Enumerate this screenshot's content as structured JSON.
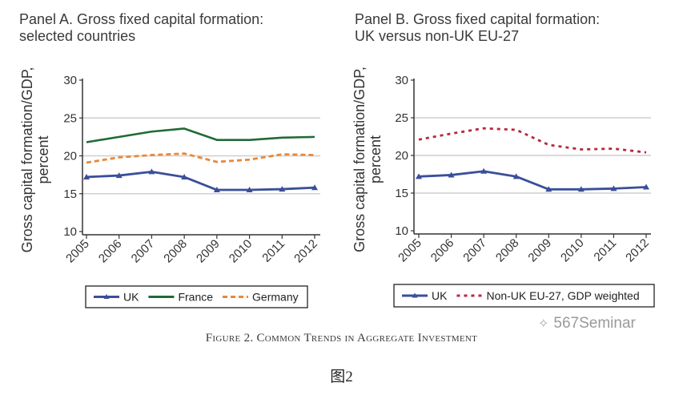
{
  "figure": {
    "caption": "Figure 2. Common Trends in Aggregate Investment",
    "sub_caption": "图2",
    "watermark": "567Seminar",
    "watermark_icon": "wechat-icon"
  },
  "chart_data": [
    {
      "type": "line",
      "title": "Panel A. Gross fixed capital formation:\nselected countries",
      "xlabel": "",
      "ylabel": "Gross capital formation/GDP,\npercent",
      "x": [
        "2005",
        "2006",
        "2007",
        "2008",
        "2009",
        "2010",
        "2011",
        "2012"
      ],
      "ylim": [
        10,
        30
      ],
      "yticks": [
        "10",
        "15",
        "20",
        "25",
        "30"
      ],
      "grid": "horizontal at 15, 20, 25",
      "legend": "bottom",
      "series": [
        {
          "name": "UK",
          "color": "#3a4f9a",
          "style": "solid-with-triangle-markers",
          "values": [
            17.2,
            17.4,
            17.9,
            17.2,
            15.5,
            15.5,
            15.6,
            15.8
          ]
        },
        {
          "name": "France",
          "color": "#1f6b36",
          "style": "solid",
          "values": [
            21.8,
            22.5,
            23.2,
            23.6,
            22.1,
            22.1,
            22.4,
            22.5
          ]
        },
        {
          "name": "Germany",
          "color": "#e8883a",
          "style": "dashed",
          "values": [
            19.1,
            19.8,
            20.1,
            20.3,
            19.2,
            19.5,
            20.2,
            20.1
          ]
        }
      ]
    },
    {
      "type": "line",
      "title": "Panel B. Gross fixed capital formation:\nUK versus non-UK EU-27",
      "xlabel": "",
      "ylabel": "Gross capital formation/GDP,\npercent",
      "x": [
        "2005",
        "2006",
        "2007",
        "2008",
        "2009",
        "2010",
        "2011",
        "2012"
      ],
      "ylim": [
        10,
        30
      ],
      "yticks": [
        "10",
        "15",
        "20",
        "25",
        "30"
      ],
      "grid": "horizontal at 15, 20, 25",
      "legend": "bottom",
      "series": [
        {
          "name": "UK",
          "color": "#3a4f9a",
          "style": "solid-with-triangle-markers",
          "values": [
            17.2,
            17.4,
            17.9,
            17.2,
            15.5,
            15.5,
            15.6,
            15.8
          ]
        },
        {
          "name": "Non-UK EU-27, GDP weighted",
          "color": "#b5293f",
          "style": "dotted",
          "values": [
            22.1,
            22.9,
            23.6,
            23.4,
            21.4,
            20.8,
            20.9,
            20.4
          ]
        }
      ]
    }
  ]
}
